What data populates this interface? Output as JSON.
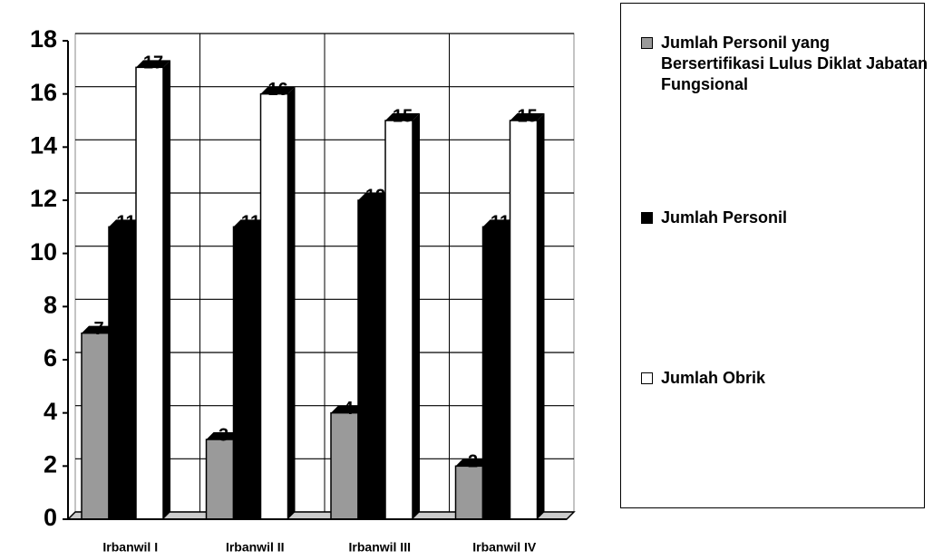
{
  "chart_data": {
    "type": "bar",
    "categories": [
      "Irbanwil I",
      "Irbanwil II",
      "Irbanwil III",
      "Irbanwil IV"
    ],
    "series": [
      {
        "name": "Jumlah Personil yang Bersertifikasi Lulus Diklat Jabatan Fungsional",
        "color": "#9a9a9a",
        "values": [
          7,
          3,
          4,
          2
        ]
      },
      {
        "name": "Jumlah Personil",
        "color": "#000000",
        "values": [
          11,
          11,
          12,
          11
        ]
      },
      {
        "name": "Jumlah Obrik",
        "color": "#ffffff",
        "values": [
          17,
          16,
          15,
          15
        ]
      }
    ],
    "ylim": [
      0,
      18
    ],
    "yticks": [
      0,
      2,
      4,
      6,
      8,
      10,
      12,
      14,
      16,
      18
    ],
    "grid": true,
    "legend": "right"
  }
}
